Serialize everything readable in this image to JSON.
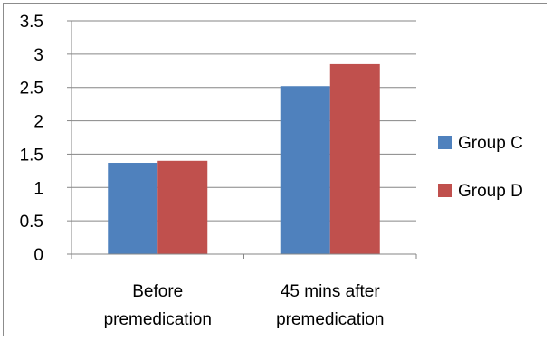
{
  "chart_data": {
    "type": "bar",
    "title": "",
    "xlabel": "",
    "ylabel": "",
    "categories": [
      [
        "Before",
        "premedication"
      ],
      [
        "45 mins after",
        "premedication"
      ]
    ],
    "series": [
      {
        "name": "Group C",
        "color": "#4F81BD",
        "values": [
          1.37,
          2.52
        ]
      },
      {
        "name": "Group D",
        "color": "#C0504D",
        "values": [
          1.4,
          2.85
        ]
      }
    ],
    "ylim": [
      0,
      3.5
    ],
    "yticks": [
      "0",
      "0.5",
      "1",
      "1.5",
      "2",
      "2.5",
      "3",
      "3.5"
    ],
    "grid": true,
    "legend_position": "right"
  }
}
